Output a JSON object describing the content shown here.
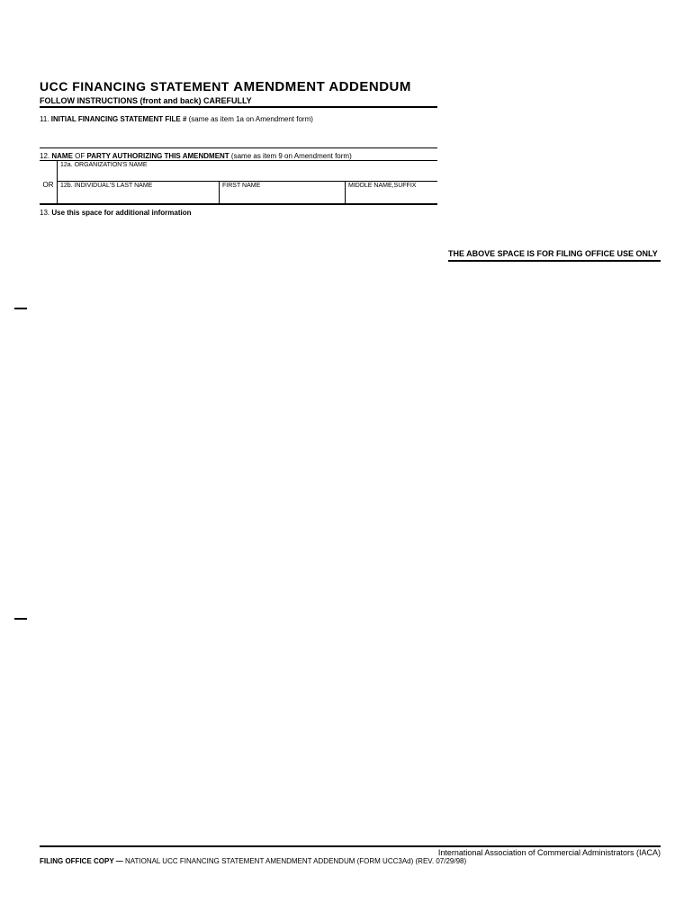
{
  "title": {
    "part1": "UCC FINANCING STATEMENT ",
    "part2": "AMENDMENT ADDENDUM"
  },
  "instructions": "FOLLOW INSTRUCTIONS (front and back) CAREFULLY",
  "section11": {
    "number": "11. ",
    "label": "INITIAL FINANCING STATEMENT FILE # ",
    "note": "(same as item 1a on Amendment form)"
  },
  "section12": {
    "number": "12. ",
    "label_part1": "NAME ",
    "label_of": "OF ",
    "label_part2": "PARTY AUTHORIZING THIS AMENDMENT ",
    "note": "(same as item 9 on Amendment form)",
    "or_text": "OR",
    "row_a": "12a. ORGANIZATION'S NAME",
    "row_b_last": "12b. INDIVIDUAL'S LAST NAME",
    "row_b_first": "FIRST NAME",
    "row_b_middle": "MIDDLE NAME,SUFFIX"
  },
  "section13": {
    "number": "13. ",
    "label": "Use this space for additional information"
  },
  "filing_office_note": "THE ABOVE SPACE IS FOR FILING OFFICE USE ONLY",
  "footer": {
    "line1": "International Association of Commercial Administrators (IACA)",
    "line2_bold": "FILING OFFICE COPY — ",
    "line2_rest": "NATIONAL UCC FINANCING STATEMENT AMENDMENT ADDENDUM (FORM UCC3Ad) (REV. 07/29/98)"
  }
}
